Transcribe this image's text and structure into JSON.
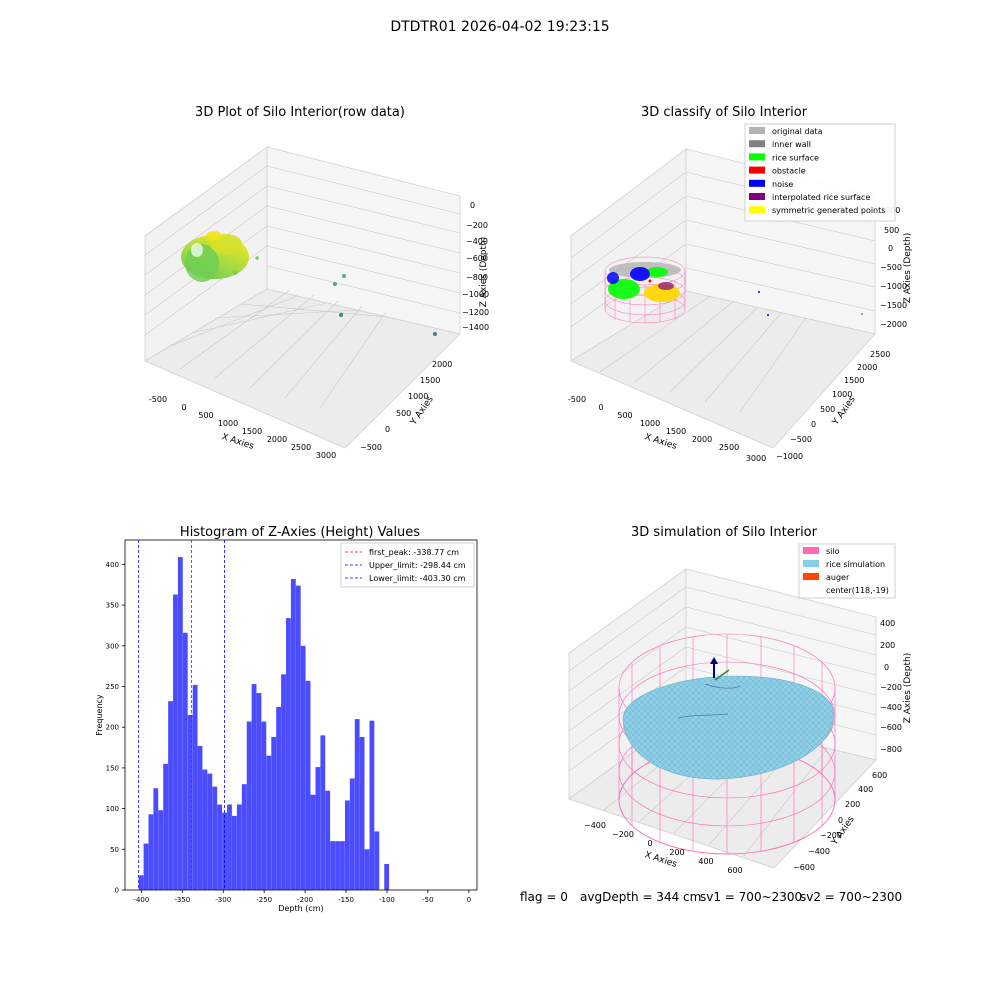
{
  "figure": {
    "suptitle": "DTDTR01 2026-04-02 19:23:15",
    "footer": {
      "flag": "flag = 0",
      "avg_depth": "avgDepth = 344 cm",
      "sv1": "sv1 = 700~2300",
      "sv2": "sv2 = 700~2300"
    }
  },
  "chart_data": [
    {
      "type": "scatter",
      "projection": "3d",
      "title": "3D Plot of Silo Interior(row data)",
      "xlabel": "X Axies",
      "ylabel": "Y Axies",
      "zlabel": "Z Axies (Depth)",
      "x_ticks": [
        "-500",
        "0",
        "500",
        "1000",
        "1500",
        "2000",
        "2500",
        "3000"
      ],
      "y_ticks": [
        "-500",
        "0",
        "500",
        "1000",
        "1500",
        "2000"
      ],
      "z_ticks": [
        "0",
        "−200",
        "−400",
        "−600",
        "−800",
        "−1000",
        "−1200",
        "−1400"
      ],
      "grid": true,
      "colormap": "viridis (depth)",
      "outlier_points": [
        {
          "x": 1200,
          "y": 1900,
          "z": -900
        },
        {
          "x": 1300,
          "y": 1700,
          "z": -1000
        },
        {
          "x": 1500,
          "y": 1200,
          "z": -1200
        },
        {
          "x": 2900,
          "y": 1600,
          "z": -1400
        }
      ]
    },
    {
      "type": "scatter",
      "projection": "3d",
      "title": "3D classify of Silo Interior",
      "xlabel": "X Axies",
      "ylabel": "Y Axies",
      "zlabel": "Z Axies (Depth)",
      "x_ticks": [
        "-500",
        "0",
        "500",
        "1000",
        "1500",
        "2000",
        "2500",
        "3000"
      ],
      "y_ticks": [
        "-1000",
        "-500",
        "0",
        "500",
        "1000",
        "1500",
        "2000",
        "2500"
      ],
      "z_ticks": [
        "1000",
        "500",
        "0",
        "−500",
        "−1000",
        "−1500",
        "−2000"
      ],
      "grid": true,
      "legend_position": "top-right",
      "legend": [
        {
          "label": "original data",
          "color": "#b3b3b3"
        },
        {
          "label": "inner wall",
          "color": "#808080"
        },
        {
          "label": "rice surface",
          "color": "#00ff00"
        },
        {
          "label": "obstacle",
          "color": "#ff0000"
        },
        {
          "label": "noise",
          "color": "#0000ff"
        },
        {
          "label": "interpolated rice surface",
          "color": "#800080"
        },
        {
          "label": "symmetric generated points",
          "color": "#ffff00"
        }
      ]
    },
    {
      "type": "bar",
      "subtype": "histogram",
      "title": "Histogram of Z-Axies (Height) Values",
      "xlabel": "Depth (cm)",
      "ylabel": "Frequency",
      "xlim": [
        -420,
        10
      ],
      "ylim": [
        0,
        430
      ],
      "x_ticks": [
        -400,
        -350,
        -300,
        -250,
        -200,
        -150,
        -100,
        -50,
        0
      ],
      "y_ticks": [
        0,
        50,
        100,
        150,
        200,
        250,
        300,
        350,
        400
      ],
      "bin_start": -403.3,
      "bin_width": 6.0,
      "values": [
        18,
        57,
        93,
        125,
        98,
        155,
        232,
        363,
        409,
        316,
        215,
        252,
        177,
        148,
        143,
        127,
        105,
        95,
        105,
        91,
        105,
        130,
        207,
        253,
        242,
        207,
        165,
        188,
        225,
        265,
        334,
        382,
        374,
        300,
        257,
        117,
        151,
        190,
        122,
        60,
        60,
        60,
        110,
        137,
        210,
        188,
        50,
        208,
        72,
        0,
        32
      ],
      "bar_color": "#0000ff",
      "bar_alpha": 0.7,
      "vlines": [
        {
          "label": "first_peak: -338.77 cm",
          "x": -338.77,
          "color": "#ff0000"
        },
        {
          "label": "Upper_limit: -298.44 cm",
          "x": -298.44,
          "color": "#0000ff"
        },
        {
          "label": "Lower_limit: -403.30 cm",
          "x": -403.3,
          "color": "#0000ff"
        }
      ],
      "legend_position": "top-right"
    },
    {
      "type": "surface",
      "projection": "3d",
      "title": "3D simulation of Silo Interior",
      "xlabel": "X Axies",
      "ylabel": "Y Axies",
      "zlabel": "Z Axies (Depth)",
      "x_ticks": [
        "−400",
        "−200",
        "0",
        "200",
        "400",
        "600"
      ],
      "y_ticks": [
        "−600",
        "−400",
        "−200",
        "0",
        "200",
        "400",
        "600"
      ],
      "z_ticks": [
        "400",
        "200",
        "0",
        "−200",
        "−400",
        "−600",
        "−800"
      ],
      "grid": true,
      "legend_position": "top-right",
      "legend": [
        {
          "label": "silo",
          "color": "#ff69b4"
        },
        {
          "label": "rice simulation",
          "color": "#87ceeb"
        },
        {
          "label": "auger",
          "color": "#ff4500"
        },
        {
          "label": "center(118,-19)",
          "color": ""
        }
      ]
    }
  ]
}
